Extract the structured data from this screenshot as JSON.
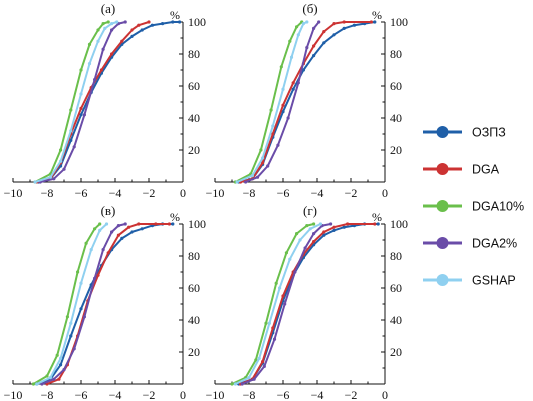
{
  "chart_data": {
    "type": "line",
    "unit_label": "%",
    "xlim": [
      -10,
      0
    ],
    "ylim": [
      0,
      100
    ],
    "x_ticks": [
      -10,
      -8,
      -6,
      -4,
      -2,
      0
    ],
    "y_ticks": [
      20,
      40,
      60,
      80,
      100
    ],
    "grid": false,
    "legend": {
      "placement": "right",
      "entries": [
        {
          "name": "ОЗПЗ",
          "color": "#1f5fa8"
        },
        {
          "name": "DGA",
          "color": "#cc3333"
        },
        {
          "name": "DGA10%",
          "color": "#6abf4b"
        },
        {
          "name": "DGA2%",
          "color": "#6a4ca8"
        },
        {
          "name": "GSHAP",
          "color": "#8fd0f0"
        }
      ]
    },
    "panels": [
      {
        "label": "(а)",
        "series": [
          {
            "name": "ОЗПЗ",
            "points": [
              [
                -8.5,
                0
              ],
              [
                -7.8,
                2
              ],
              [
                -7.2,
                10
              ],
              [
                -6.6,
                26
              ],
              [
                -6.0,
                42
              ],
              [
                -5.4,
                56
              ],
              [
                -4.8,
                68
              ],
              [
                -4.2,
                78
              ],
              [
                -3.6,
                86
              ],
              [
                -3.0,
                91
              ],
              [
                -2.4,
                95
              ],
              [
                -1.8,
                98
              ],
              [
                -1.2,
                99
              ],
              [
                -0.6,
                100
              ],
              [
                -0.2,
                100
              ]
            ]
          },
          {
            "name": "DGA",
            "points": [
              [
                -8.6,
                0
              ],
              [
                -7.8,
                2
              ],
              [
                -7.2,
                12
              ],
              [
                -6.6,
                30
              ],
              [
                -6.0,
                46
              ],
              [
                -5.4,
                59
              ],
              [
                -4.8,
                70
              ],
              [
                -4.2,
                80
              ],
              [
                -3.6,
                88
              ],
              [
                -3.0,
                95
              ],
              [
                -2.6,
                98
              ],
              [
                -2.0,
                100
              ]
            ]
          },
          {
            "name": "DGA10%",
            "points": [
              [
                -8.7,
                0
              ],
              [
                -7.8,
                5
              ],
              [
                -7.2,
                20
              ],
              [
                -6.6,
                45
              ],
              [
                -6.0,
                70
              ],
              [
                -5.5,
                86
              ],
              [
                -5.0,
                95
              ],
              [
                -4.7,
                99
              ],
              [
                -4.4,
                100
              ]
            ]
          },
          {
            "name": "DGA2%",
            "points": [
              [
                -8.4,
                0
              ],
              [
                -7.6,
                2
              ],
              [
                -7.0,
                8
              ],
              [
                -6.4,
                22
              ],
              [
                -5.8,
                42
              ],
              [
                -5.2,
                64
              ],
              [
                -4.7,
                83
              ],
              [
                -4.2,
                95
              ],
              [
                -3.8,
                99
              ],
              [
                -3.4,
                100
              ]
            ]
          },
          {
            "name": "GSHAP",
            "points": [
              [
                -8.7,
                0
              ],
              [
                -7.8,
                3
              ],
              [
                -7.2,
                13
              ],
              [
                -6.6,
                32
              ],
              [
                -6.0,
                55
              ],
              [
                -5.5,
                74
              ],
              [
                -5.0,
                88
              ],
              [
                -4.6,
                96
              ],
              [
                -4.2,
                99
              ],
              [
                -3.9,
                100
              ]
            ]
          }
        ]
      },
      {
        "label": "(б)",
        "series": [
          {
            "name": "ОЗПЗ",
            "points": [
              [
                -8.6,
                0
              ],
              [
                -7.8,
                2
              ],
              [
                -7.2,
                11
              ],
              [
                -6.6,
                28
              ],
              [
                -6.0,
                44
              ],
              [
                -5.4,
                58
              ],
              [
                -4.8,
                70
              ],
              [
                -4.2,
                79
              ],
              [
                -3.6,
                87
              ],
              [
                -3.0,
                92
              ],
              [
                -2.4,
                96
              ],
              [
                -1.8,
                98
              ],
              [
                -1.2,
                99
              ],
              [
                -0.6,
                100
              ]
            ]
          },
          {
            "name": "DGA",
            "points": [
              [
                -8.5,
                0
              ],
              [
                -7.8,
                2
              ],
              [
                -7.2,
                12
              ],
              [
                -6.6,
                30
              ],
              [
                -6.0,
                48
              ],
              [
                -5.4,
                62
              ],
              [
                -4.8,
                74
              ],
              [
                -4.2,
                85
              ],
              [
                -3.6,
                94
              ],
              [
                -3.0,
                99
              ],
              [
                -2.4,
                100
              ],
              [
                -0.8,
                100
              ]
            ]
          },
          {
            "name": "DGA10%",
            "points": [
              [
                -8.8,
                0
              ],
              [
                -7.9,
                5
              ],
              [
                -7.3,
                20
              ],
              [
                -6.7,
                45
              ],
              [
                -6.1,
                72
              ],
              [
                -5.6,
                88
              ],
              [
                -5.2,
                97
              ],
              [
                -4.9,
                100
              ]
            ]
          },
          {
            "name": "DGA2%",
            "points": [
              [
                -8.2,
                0
              ],
              [
                -7.5,
                3
              ],
              [
                -6.9,
                10
              ],
              [
                -6.3,
                23
              ],
              [
                -5.7,
                40
              ],
              [
                -5.1,
                62
              ],
              [
                -4.6,
                84
              ],
              [
                -4.2,
                96
              ],
              [
                -3.9,
                100
              ]
            ]
          },
          {
            "name": "GSHAP",
            "points": [
              [
                -8.7,
                0
              ],
              [
                -7.8,
                4
              ],
              [
                -7.2,
                15
              ],
              [
                -6.6,
                35
              ],
              [
                -6.0,
                58
              ],
              [
                -5.5,
                78
              ],
              [
                -5.1,
                92
              ],
              [
                -4.8,
                99
              ],
              [
                -4.6,
                100
              ]
            ]
          }
        ]
      },
      {
        "label": "(в)",
        "series": [
          {
            "name": "ОЗПЗ",
            "points": [
              [
                -8.6,
                0
              ],
              [
                -7.8,
                3
              ],
              [
                -7.2,
                12
              ],
              [
                -6.6,
                30
              ],
              [
                -6.0,
                47
              ],
              [
                -5.4,
                62
              ],
              [
                -4.8,
                74
              ],
              [
                -4.2,
                84
              ],
              [
                -3.6,
                91
              ],
              [
                -3.0,
                95
              ],
              [
                -2.4,
                97
              ],
              [
                -1.8,
                99
              ],
              [
                -1.2,
                100
              ],
              [
                -0.6,
                100
              ]
            ]
          },
          {
            "name": "DGA",
            "points": [
              [
                -8.0,
                0
              ],
              [
                -7.3,
                3
              ],
              [
                -6.8,
                12
              ],
              [
                -6.2,
                30
              ],
              [
                -5.6,
                52
              ],
              [
                -5.0,
                68
              ],
              [
                -4.4,
                82
              ],
              [
                -3.8,
                93
              ],
              [
                -3.2,
                98
              ],
              [
                -2.6,
                100
              ],
              [
                -1.6,
                100
              ],
              [
                -0.8,
                100
              ]
            ]
          },
          {
            "name": "DGA10%",
            "points": [
              [
                -8.8,
                0
              ],
              [
                -8.0,
                5
              ],
              [
                -7.4,
                18
              ],
              [
                -6.8,
                42
              ],
              [
                -6.2,
                70
              ],
              [
                -5.7,
                88
              ],
              [
                -5.2,
                97
              ],
              [
                -4.9,
                100
              ]
            ]
          },
          {
            "name": "DGA2%",
            "points": [
              [
                -8.3,
                0
              ],
              [
                -7.6,
                3
              ],
              [
                -7.0,
                9
              ],
              [
                -6.4,
                22
              ],
              [
                -5.8,
                42
              ],
              [
                -5.2,
                66
              ],
              [
                -4.7,
                84
              ],
              [
                -4.2,
                95
              ],
              [
                -3.8,
                99
              ],
              [
                -3.4,
                100
              ]
            ]
          },
          {
            "name": "GSHAP",
            "points": [
              [
                -8.6,
                0
              ],
              [
                -7.8,
                4
              ],
              [
                -7.2,
                16
              ],
              [
                -6.6,
                38
              ],
              [
                -6.0,
                63
              ],
              [
                -5.4,
                84
              ],
              [
                -4.9,
                96
              ],
              [
                -4.5,
                100
              ]
            ]
          }
        ]
      },
      {
        "label": "(г)",
        "series": [
          {
            "name": "ОЗПЗ",
            "points": [
              [
                -8.6,
                0
              ],
              [
                -7.8,
                3
              ],
              [
                -7.2,
                13
              ],
              [
                -6.6,
                32
              ],
              [
                -6.0,
                52
              ],
              [
                -5.4,
                68
              ],
              [
                -4.8,
                79
              ],
              [
                -4.2,
                87
              ],
              [
                -3.6,
                93
              ],
              [
                -3.0,
                96
              ],
              [
                -2.4,
                98
              ],
              [
                -1.8,
                99
              ],
              [
                -1.2,
                100
              ],
              [
                -0.4,
                100
              ]
            ]
          },
          {
            "name": "DGA",
            "points": [
              [
                -8.5,
                0
              ],
              [
                -7.8,
                3
              ],
              [
                -7.2,
                14
              ],
              [
                -6.6,
                35
              ],
              [
                -6.0,
                55
              ],
              [
                -5.4,
                70
              ],
              [
                -4.8,
                81
              ],
              [
                -4.2,
                89
              ],
              [
                -3.6,
                95
              ],
              [
                -3.0,
                98
              ],
              [
                -2.2,
                100
              ],
              [
                -0.6,
                100
              ]
            ]
          },
          {
            "name": "DGA10%",
            "points": [
              [
                -9.0,
                0
              ],
              [
                -8.2,
                4
              ],
              [
                -7.6,
                15
              ],
              [
                -7.0,
                38
              ],
              [
                -6.4,
                63
              ],
              [
                -5.8,
                82
              ],
              [
                -5.2,
                94
              ],
              [
                -4.6,
                99
              ],
              [
                -4.2,
                100
              ]
            ]
          },
          {
            "name": "DGA2%",
            "points": [
              [
                -8.4,
                0
              ],
              [
                -7.7,
                3
              ],
              [
                -7.1,
                11
              ],
              [
                -6.5,
                28
              ],
              [
                -5.9,
                50
              ],
              [
                -5.3,
                70
              ],
              [
                -4.7,
                85
              ],
              [
                -4.2,
                94
              ],
              [
                -3.7,
                99
              ],
              [
                -3.2,
                100
              ]
            ]
          },
          {
            "name": "GSHAP",
            "points": [
              [
                -8.8,
                0
              ],
              [
                -8.0,
                4
              ],
              [
                -7.4,
                16
              ],
              [
                -6.8,
                38
              ],
              [
                -6.2,
                60
              ],
              [
                -5.6,
                78
              ],
              [
                -5.0,
                90
              ],
              [
                -4.4,
                97
              ],
              [
                -3.8,
                100
              ]
            ]
          }
        ]
      }
    ]
  }
}
